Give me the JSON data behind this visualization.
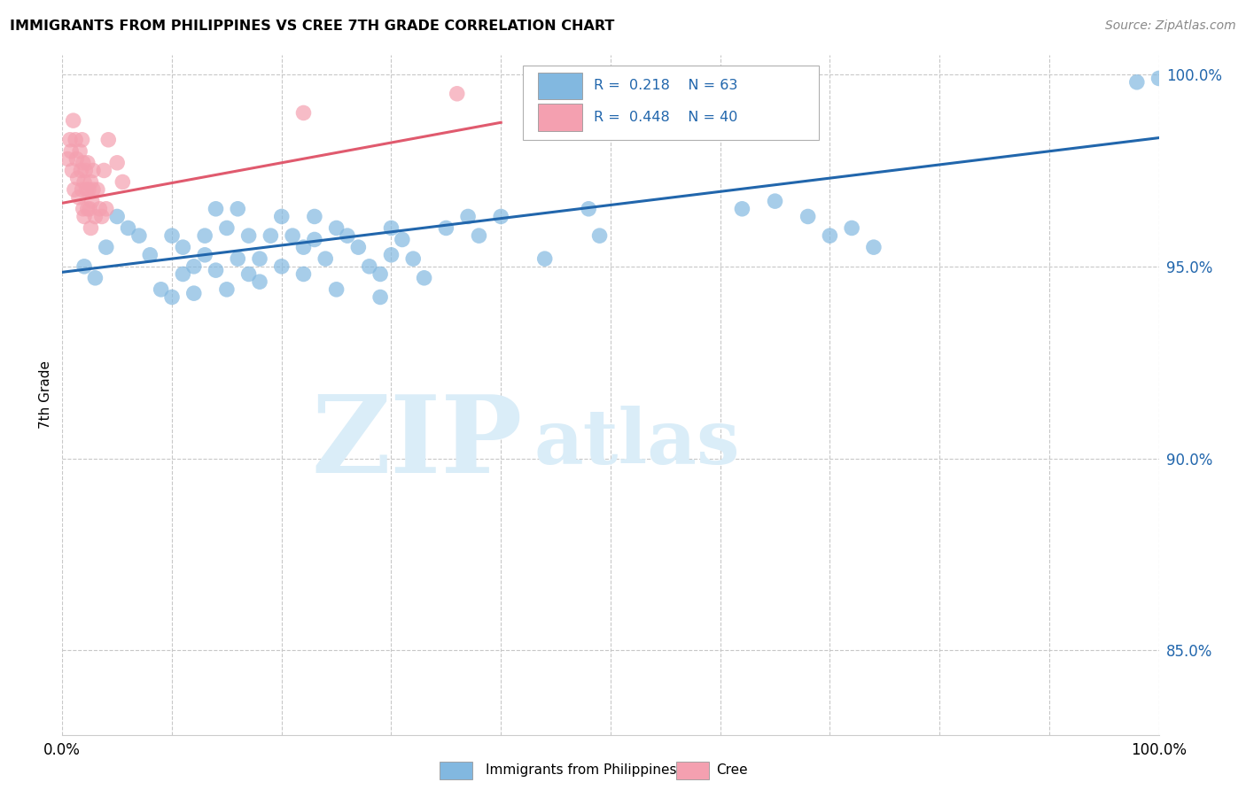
{
  "title": "IMMIGRANTS FROM PHILIPPINES VS CREE 7TH GRADE CORRELATION CHART",
  "source": "Source: ZipAtlas.com",
  "ylabel": "7th Grade",
  "xlim": [
    0.0,
    1.0
  ],
  "ylim": [
    0.828,
    1.005
  ],
  "x_ticks": [
    0.0,
    0.1,
    0.2,
    0.3,
    0.4,
    0.5,
    0.6,
    0.7,
    0.8,
    0.9,
    1.0
  ],
  "x_tick_labels": [
    "0.0%",
    "",
    "",
    "",
    "",
    "",
    "",
    "",
    "",
    "",
    "100.0%"
  ],
  "y_ticks": [
    0.85,
    0.9,
    0.95,
    1.0
  ],
  "y_tick_labels": [
    "85.0%",
    "90.0%",
    "95.0%",
    "100.0%"
  ],
  "color_blue": "#82b8e0",
  "color_pink": "#f4a0b0",
  "line_color_blue": "#2166ac",
  "line_color_pink": "#e05a6e",
  "watermark_zip": "ZIP",
  "watermark_atlas": "atlas",
  "watermark_color": "#daedf8",
  "blue_points_x": [
    0.02,
    0.03,
    0.04,
    0.05,
    0.06,
    0.07,
    0.08,
    0.09,
    0.1,
    0.1,
    0.11,
    0.11,
    0.12,
    0.12,
    0.13,
    0.13,
    0.14,
    0.14,
    0.15,
    0.15,
    0.16,
    0.16,
    0.17,
    0.17,
    0.18,
    0.18,
    0.19,
    0.2,
    0.2,
    0.21,
    0.22,
    0.22,
    0.23,
    0.23,
    0.24,
    0.25,
    0.25,
    0.26,
    0.27,
    0.28,
    0.29,
    0.29,
    0.3,
    0.3,
    0.31,
    0.32,
    0.33,
    0.35,
    0.37,
    0.38,
    0.4,
    0.44,
    0.48,
    0.49,
    0.62,
    0.65,
    0.68,
    0.7,
    0.72,
    0.74,
    0.98,
    1.0
  ],
  "blue_points_y": [
    0.95,
    0.947,
    0.955,
    0.963,
    0.96,
    0.958,
    0.953,
    0.944,
    0.958,
    0.942,
    0.955,
    0.948,
    0.95,
    0.943,
    0.958,
    0.953,
    0.965,
    0.949,
    0.96,
    0.944,
    0.952,
    0.965,
    0.958,
    0.948,
    0.952,
    0.946,
    0.958,
    0.963,
    0.95,
    0.958,
    0.955,
    0.948,
    0.963,
    0.957,
    0.952,
    0.96,
    0.944,
    0.958,
    0.955,
    0.95,
    0.948,
    0.942,
    0.96,
    0.953,
    0.957,
    0.952,
    0.947,
    0.96,
    0.963,
    0.958,
    0.963,
    0.952,
    0.965,
    0.958,
    0.965,
    0.967,
    0.963,
    0.958,
    0.96,
    0.955,
    0.998,
    0.999
  ],
  "pink_points_x": [
    0.005,
    0.007,
    0.008,
    0.009,
    0.01,
    0.011,
    0.012,
    0.013,
    0.014,
    0.015,
    0.016,
    0.017,
    0.018,
    0.018,
    0.019,
    0.019,
    0.02,
    0.02,
    0.021,
    0.022,
    0.023,
    0.023,
    0.024,
    0.025,
    0.026,
    0.026,
    0.027,
    0.028,
    0.028,
    0.03,
    0.032,
    0.034,
    0.036,
    0.038,
    0.04,
    0.042,
    0.05,
    0.055,
    0.22,
    0.36
  ],
  "pink_points_y": [
    0.978,
    0.983,
    0.98,
    0.975,
    0.988,
    0.97,
    0.983,
    0.978,
    0.973,
    0.968,
    0.98,
    0.975,
    0.983,
    0.97,
    0.977,
    0.965,
    0.972,
    0.963,
    0.975,
    0.97,
    0.977,
    0.965,
    0.97,
    0.965,
    0.972,
    0.96,
    0.967,
    0.97,
    0.975,
    0.963,
    0.97,
    0.965,
    0.963,
    0.975,
    0.965,
    0.983,
    0.977,
    0.972,
    0.99,
    0.995
  ],
  "blue_line_x": [
    0.0,
    1.0
  ],
  "blue_line_y": [
    0.9485,
    0.9835
  ],
  "pink_line_x": [
    0.0,
    0.4
  ],
  "pink_line_y": [
    0.9665,
    0.9875
  ]
}
